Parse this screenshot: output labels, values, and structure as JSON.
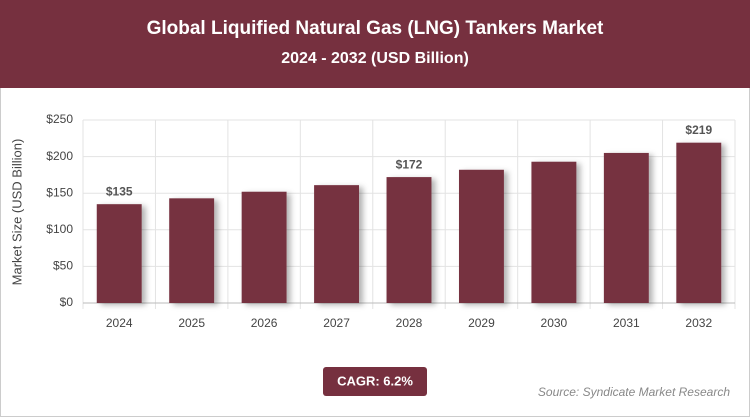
{
  "chart_data": {
    "type": "bar",
    "title": "Global Liquified Natural Gas (LNG) Tankers Market",
    "subtitle": "2024 - 2032 (USD Billion)",
    "y_label": "Market Size (USD Billion)",
    "categories": [
      "2024",
      "2025",
      "2026",
      "2027",
      "2028",
      "2029",
      "2030",
      "2031",
      "2032"
    ],
    "values": [
      135,
      143,
      152,
      161,
      172,
      182,
      193,
      205,
      219
    ],
    "value_labels": [
      "$135",
      null,
      null,
      null,
      "$172",
      null,
      null,
      null,
      "$219"
    ],
    "color": "#76303f",
    "ylim": [
      0,
      250
    ],
    "yticks": [
      {
        "value": 0,
        "label": "$0"
      },
      {
        "value": 50,
        "label": "$50"
      },
      {
        "value": 100,
        "label": "$100"
      },
      {
        "value": 150,
        "label": "$150"
      },
      {
        "value": 200,
        "label": "$200"
      },
      {
        "value": 250,
        "label": "$250"
      }
    ],
    "grid": true,
    "annotations": [
      "CAGR: 6.2%",
      "Source: Syndicate Market Research"
    ]
  }
}
